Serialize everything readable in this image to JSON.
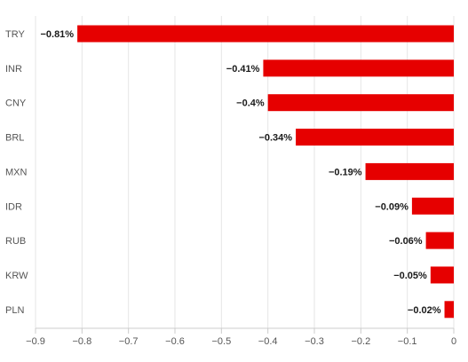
{
  "chart_data": {
    "type": "bar",
    "orientation": "horizontal",
    "categories": [
      "TRY",
      "INR",
      "CNY",
      "BRL",
      "MXN",
      "IDR",
      "RUB",
      "KRW",
      "PLN"
    ],
    "values": [
      -0.81,
      -0.41,
      -0.4,
      -0.34,
      -0.19,
      -0.09,
      -0.06,
      -0.05,
      -0.02
    ],
    "data_labels": [
      "−0.81%",
      "−0.41%",
      "−0.4%",
      "−0.34%",
      "−0.19%",
      "−0.09%",
      "−0.06%",
      "−0.05%",
      "−0.02%"
    ],
    "xlim": [
      -0.9,
      0
    ],
    "x_ticks": [
      -0.9,
      -0.8,
      -0.7,
      -0.6,
      -0.5,
      -0.4,
      -0.3,
      -0.2,
      -0.1,
      0
    ],
    "x_tick_labels": [
      "−0.9",
      "−0.8",
      "−0.7",
      "−0.6",
      "−0.5",
      "−0.4",
      "−0.3",
      "−0.2",
      "−0.1",
      "0"
    ],
    "title": "",
    "xlabel": "",
    "ylabel": "",
    "grid": "vertical",
    "colors": {
      "bar": "#e60000",
      "grid": "#e6e6e6",
      "axis": "#cccccc"
    }
  }
}
